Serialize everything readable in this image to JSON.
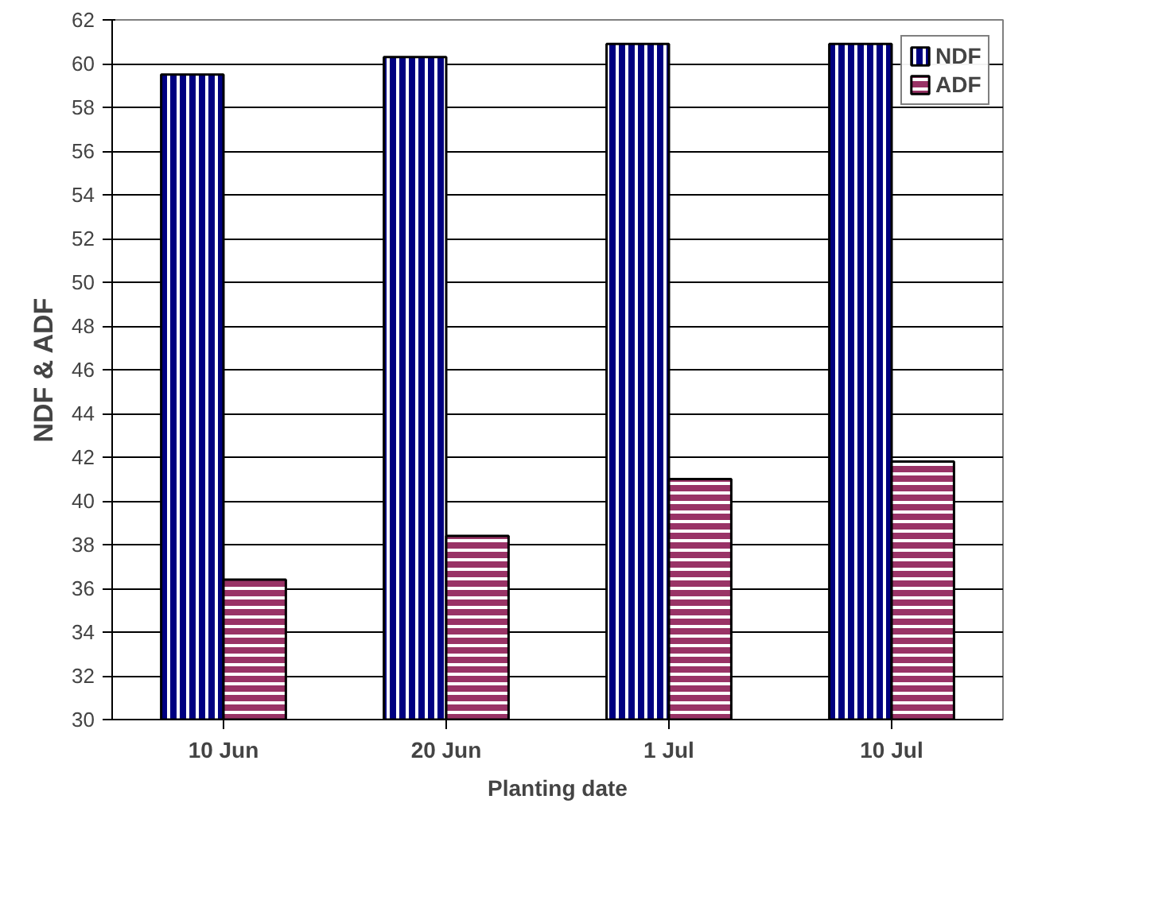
{
  "chart_data": {
    "type": "bar",
    "xlabel": "Planting date",
    "ylabel": "NDF & ADF",
    "categories": [
      "10 Jun",
      "20 Jun",
      "1 Jul",
      "10 Jul"
    ],
    "series": [
      {
        "name": "NDF",
        "color": "#000080",
        "values": [
          59.5,
          60.3,
          60.9,
          60.9
        ]
      },
      {
        "name": "ADF",
        "color": "#993366",
        "values": [
          36.4,
          38.4,
          41.0,
          41.8
        ]
      }
    ],
    "ylim": [
      30,
      62
    ],
    "yticks": [
      30,
      32,
      34,
      36,
      38,
      40,
      42,
      44,
      46,
      48,
      50,
      52,
      54,
      56,
      58,
      60,
      62
    ],
    "grid": "y",
    "legend": "top right"
  }
}
